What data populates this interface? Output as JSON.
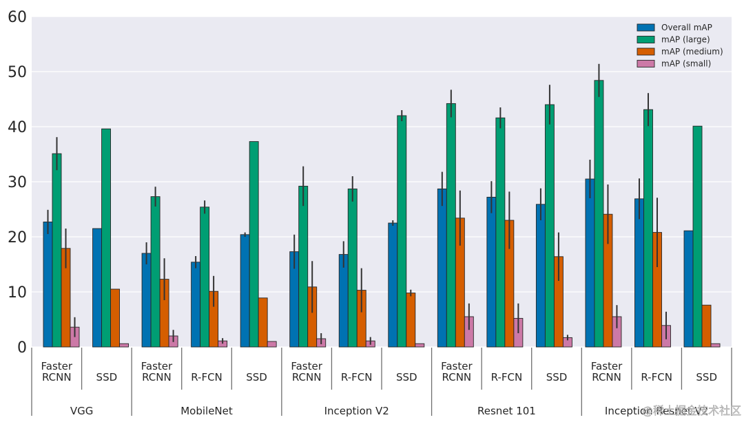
{
  "chart_data": {
    "type": "bar",
    "ylim": [
      0,
      60
    ],
    "yticks": [
      0,
      10,
      20,
      30,
      40,
      50,
      60
    ],
    "grid": "horizontal",
    "legend": "top-right",
    "background": "#EAEAF2",
    "groups": [
      {
        "label": "VGG",
        "categories": [
          [
            "Faster",
            "RCNN"
          ],
          [
            "SSD"
          ]
        ]
      },
      {
        "label": "MobileNet",
        "categories": [
          [
            "Faster",
            "RCNN"
          ],
          [
            "R-FCN"
          ],
          [
            "SSD"
          ]
        ]
      },
      {
        "label": "Inception V2",
        "categories": [
          [
            "Faster",
            "RCNN"
          ],
          [
            "R-FCN"
          ],
          [
            "SSD"
          ]
        ]
      },
      {
        "label": "Resnet 101",
        "categories": [
          [
            "Faster",
            "RCNN"
          ],
          [
            "R-FCN"
          ],
          [
            "SSD"
          ]
        ]
      },
      {
        "label": "Inception Resnet V2",
        "categories": [
          [
            "Faster",
            "RCNN"
          ],
          [
            "R-FCN"
          ],
          [
            "SSD"
          ]
        ]
      }
    ],
    "series": [
      {
        "name": "Overall mAP",
        "color": "#0072B2",
        "values": [
          22.7,
          21.5,
          17.0,
          15.4,
          20.4,
          17.3,
          16.8,
          22.5,
          28.7,
          27.2,
          25.9,
          30.5,
          26.9,
          21.1
        ],
        "errors": [
          2.2,
          0,
          2.0,
          1.1,
          0.4,
          3.1,
          2.4,
          0.5,
          3.1,
          2.9,
          2.9,
          3.5,
          3.7,
          0
        ]
      },
      {
        "name": "mAP (large)",
        "color": "#009E73",
        "values": [
          35.1,
          39.6,
          27.3,
          25.4,
          37.3,
          29.2,
          28.7,
          42.0,
          44.2,
          41.6,
          44.0,
          48.4,
          43.1,
          40.1
        ],
        "errors": [
          3.0,
          0,
          1.8,
          1.2,
          0,
          3.6,
          2.3,
          1.0,
          2.5,
          1.9,
          3.6,
          3.0,
          3.0,
          0
        ]
      },
      {
        "name": "mAP (medium)",
        "color": "#D55E00",
        "values": [
          17.9,
          10.5,
          12.3,
          10.1,
          8.9,
          10.9,
          10.3,
          9.8,
          23.4,
          23.0,
          16.4,
          24.1,
          20.8,
          7.6
        ],
        "errors": [
          3.6,
          0,
          3.8,
          2.8,
          0,
          4.7,
          4.0,
          0.6,
          5.0,
          5.2,
          4.4,
          5.4,
          6.3,
          0
        ]
      },
      {
        "name": "mAP (small)",
        "color": "#CC79A7",
        "values": [
          3.6,
          0.6,
          2.0,
          1.1,
          1.0,
          1.5,
          1.1,
          0.6,
          5.5,
          5.2,
          1.7,
          5.5,
          3.9,
          0.6
        ],
        "errors": [
          1.8,
          0,
          1.1,
          0.5,
          0,
          1.0,
          0.7,
          0,
          2.4,
          2.7,
          0.5,
          2.1,
          2.5,
          0
        ]
      }
    ]
  },
  "watermark": "@稀土掘金技术社区"
}
